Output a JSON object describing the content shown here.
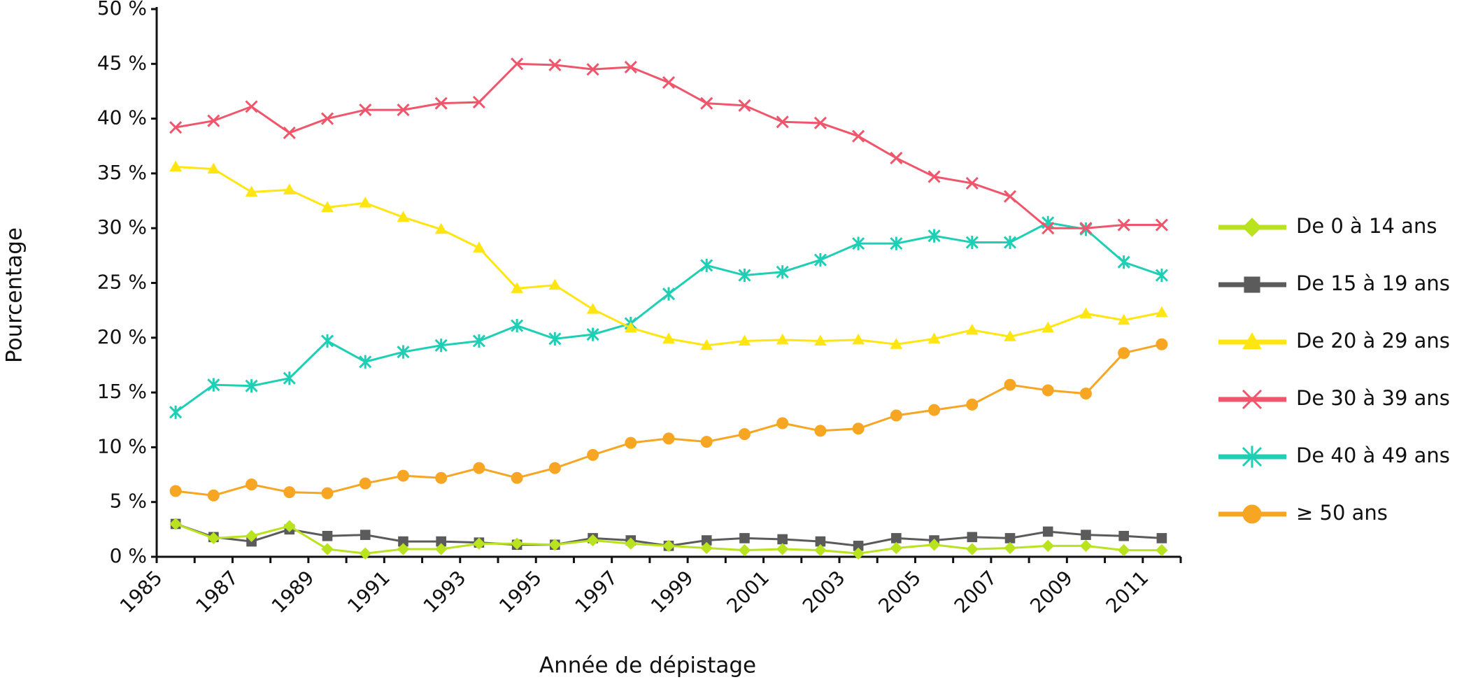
{
  "chart_data": {
    "type": "line",
    "x_label": "Année de dépistage",
    "y_label": "Pourcentage",
    "categories": [
      "1985",
      null,
      "1987",
      null,
      "1989",
      null,
      "1991",
      null,
      "1993",
      null,
      "1995",
      null,
      "1997",
      null,
      "1999",
      null,
      "2001",
      null,
      "2003",
      null,
      "2005",
      null,
      "2007",
      null,
      "2009",
      null,
      "2011"
    ],
    "ylim": [
      0,
      50
    ],
    "yticks": [
      {
        "value": 0,
        "label": "0 %"
      },
      {
        "value": 5,
        "label": "5 %"
      },
      {
        "value": 10,
        "label": "10 %"
      },
      {
        "value": 15,
        "label": "15 %"
      },
      {
        "value": 20,
        "label": "20 %"
      },
      {
        "value": 25,
        "label": "25 %"
      },
      {
        "value": 30,
        "label": "30 %"
      },
      {
        "value": 35,
        "label": "35 %"
      },
      {
        "value": 40,
        "label": "40 %"
      },
      {
        "value": 45,
        "label": "45 %"
      },
      {
        "value": 50,
        "label": "50 %"
      }
    ],
    "grid": false,
    "legend": "right",
    "series": [
      {
        "name": "De 0 à 14 ans",
        "color": "#b9e21f",
        "marker": "diamond",
        "values": [
          3.0,
          1.7,
          1.9,
          2.8,
          0.7,
          0.3,
          0.7,
          0.7,
          1.2,
          1.2,
          1.1,
          1.5,
          1.2,
          1.0,
          0.8,
          0.6,
          0.7,
          0.6,
          0.3,
          0.8,
          1.1,
          0.7,
          0.8,
          1.0,
          1.0,
          0.6,
          0.6
        ]
      },
      {
        "name": "De 15 à 19 ans",
        "color": "#5b5b5b",
        "marker": "square",
        "values": [
          3.0,
          1.8,
          1.4,
          2.5,
          1.9,
          2.0,
          1.4,
          1.4,
          1.3,
          1.1,
          1.1,
          1.7,
          1.5,
          1.0,
          1.5,
          1.7,
          1.6,
          1.4,
          1.0,
          1.7,
          1.5,
          1.8,
          1.7,
          2.3,
          2.0,
          1.9,
          1.7
        ]
      },
      {
        "name": "De 20 à 29 ans",
        "color": "#ffe512",
        "marker": "triangle",
        "values": [
          35.6,
          35.4,
          33.3,
          33.5,
          31.9,
          32.3,
          31.0,
          29.9,
          28.2,
          24.5,
          24.8,
          22.6,
          20.9,
          19.9,
          19.3,
          19.7,
          19.8,
          19.7,
          19.8,
          19.4,
          19.9,
          20.7,
          20.1,
          20.9,
          22.2,
          21.6,
          22.3
        ]
      },
      {
        "name": "De 30 à 39 ans",
        "color": "#f0566b",
        "marker": "x",
        "values": [
          39.2,
          39.8,
          41.1,
          38.7,
          40.0,
          40.8,
          40.8,
          41.4,
          41.5,
          45.0,
          44.9,
          44.5,
          44.7,
          43.3,
          41.4,
          41.2,
          39.7,
          39.6,
          38.4,
          36.4,
          34.7,
          34.1,
          32.9,
          30.0,
          30.0,
          30.3,
          30.3
        ]
      },
      {
        "name": "De 40 à 49 ans",
        "color": "#1fcfb5",
        "marker": "asterisk",
        "values": [
          13.2,
          15.7,
          15.6,
          16.3,
          19.7,
          17.8,
          18.7,
          19.3,
          19.7,
          21.1,
          19.9,
          20.3,
          21.3,
          24.0,
          26.6,
          25.7,
          26.0,
          27.1,
          28.6,
          28.6,
          29.3,
          28.7,
          28.7,
          30.5,
          29.9,
          26.9,
          25.7
        ]
      },
      {
        "name": "≥ 50 ans",
        "color": "#f6a623",
        "marker": "circle",
        "values": [
          6.0,
          5.6,
          6.6,
          5.9,
          5.8,
          6.7,
          7.4,
          7.2,
          8.1,
          7.2,
          8.1,
          9.3,
          10.4,
          10.8,
          10.5,
          11.2,
          12.2,
          11.5,
          11.7,
          12.9,
          13.4,
          13.9,
          15.7,
          15.2,
          14.9,
          18.6,
          19.4
        ]
      }
    ]
  }
}
